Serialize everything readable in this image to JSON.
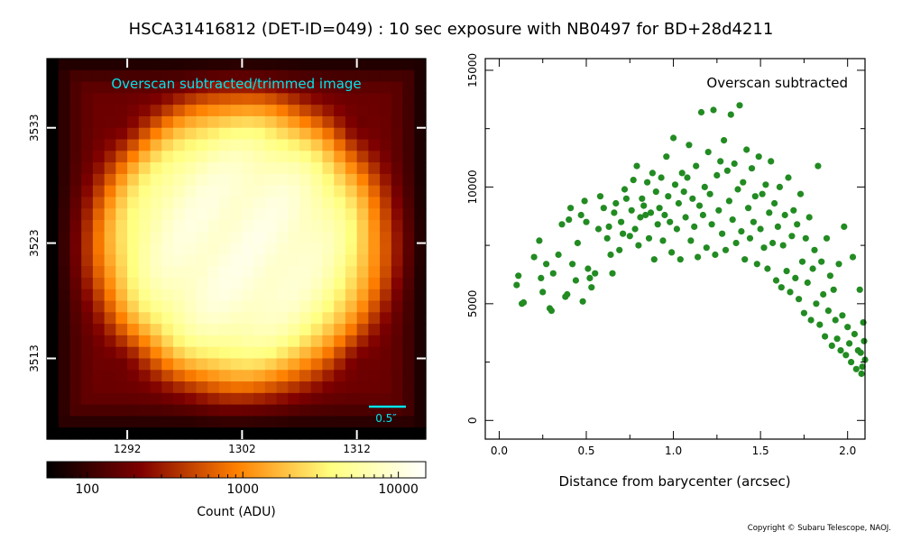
{
  "title": "HSCA31416812 (DET-ID=049) :  10 sec exposure with NB0497 for BD+28d4211",
  "copyright": "Copyright © Subaru Telescope, NAOJ.",
  "colors": {
    "scatter": "#228b22",
    "annotation": "#00e5ee",
    "frame": "#000000"
  },
  "chart_data": [
    {
      "type": "heatmap",
      "title": "Overscan subtracted/trimmed image",
      "colormap": "afmhot",
      "xlabel": "",
      "ylabel": "",
      "xlim": [
        1285,
        1318
      ],
      "ylim": [
        3506,
        3539
      ],
      "x_ticks": [
        1292,
        1302,
        1312
      ],
      "y_ticks": [
        3513,
        3523,
        3533
      ],
      "scale_bar_label": "0.5″",
      "grid_size": 33,
      "peak_adu": 12000,
      "background_adu": 55
    },
    {
      "type": "colorbar",
      "scale": "log",
      "range": [
        55,
        15000
      ],
      "ticks": [
        100,
        1000,
        10000
      ],
      "label": "Count (ADU)"
    },
    {
      "type": "scatter",
      "annotation": "Overscan subtracted",
      "xlabel": "Distance from barycenter (arcsec)",
      "ylabel": "",
      "xlim": [
        -0.08,
        2.1
      ],
      "ylim": [
        -800,
        15500
      ],
      "x_ticks": [
        0.0,
        0.5,
        1.0,
        1.5,
        2.0
      ],
      "y_ticks": [
        0,
        5000,
        10000,
        15000
      ],
      "series": [
        {
          "color": "#228b22",
          "points": [
            [
              0.1,
              5800
            ],
            [
              0.11,
              6200
            ],
            [
              0.13,
              5000
            ],
            [
              0.14,
              5050
            ],
            [
              0.2,
              7000
            ],
            [
              0.23,
              7700
            ],
            [
              0.24,
              6100
            ],
            [
              0.25,
              5500
            ],
            [
              0.27,
              6700
            ],
            [
              0.29,
              4800
            ],
            [
              0.3,
              4700
            ],
            [
              0.31,
              6300
            ],
            [
              0.34,
              7100
            ],
            [
              0.36,
              8400
            ],
            [
              0.38,
              5300
            ],
            [
              0.39,
              5400
            ],
            [
              0.4,
              8600
            ],
            [
              0.41,
              9100
            ],
            [
              0.42,
              6700
            ],
            [
              0.44,
              6000
            ],
            [
              0.45,
              7600
            ],
            [
              0.47,
              8800
            ],
            [
              0.48,
              5100
            ],
            [
              0.49,
              9400
            ],
            [
              0.5,
              8500
            ],
            [
              0.51,
              6500
            ],
            [
              0.52,
              6100
            ],
            [
              0.53,
              5700
            ],
            [
              0.55,
              6300
            ],
            [
              0.57,
              8200
            ],
            [
              0.58,
              9600
            ],
            [
              0.6,
              9100
            ],
            [
              0.62,
              7800
            ],
            [
              0.63,
              8300
            ],
            [
              0.64,
              7100
            ],
            [
              0.65,
              6300
            ],
            [
              0.66,
              8900
            ],
            [
              0.67,
              9300
            ],
            [
              0.69,
              7300
            ],
            [
              0.7,
              8500
            ],
            [
              0.71,
              8000
            ],
            [
              0.72,
              9900
            ],
            [
              0.73,
              9500
            ],
            [
              0.75,
              7900
            ],
            [
              0.76,
              9000
            ],
            [
              0.77,
              10300
            ],
            [
              0.78,
              8200
            ],
            [
              0.79,
              10900
            ],
            [
              0.8,
              7500
            ],
            [
              0.81,
              8700
            ],
            [
              0.82,
              9500
            ],
            [
              0.83,
              9200
            ],
            [
              0.84,
              8800
            ],
            [
              0.85,
              10200
            ],
            [
              0.86,
              7800
            ],
            [
              0.87,
              8900
            ],
            [
              0.88,
              10600
            ],
            [
              0.89,
              6900
            ],
            [
              0.9,
              9800
            ],
            [
              0.91,
              8400
            ],
            [
              0.92,
              9100
            ],
            [
              0.93,
              10400
            ],
            [
              0.94,
              7700
            ],
            [
              0.95,
              8800
            ],
            [
              0.96,
              11300
            ],
            [
              0.97,
              9600
            ],
            [
              0.98,
              8500
            ],
            [
              0.99,
              7200
            ],
            [
              1.0,
              12100
            ],
            [
              1.01,
              10100
            ],
            [
              1.02,
              8200
            ],
            [
              1.03,
              9300
            ],
            [
              1.04,
              6900
            ],
            [
              1.05,
              10600
            ],
            [
              1.06,
              9800
            ],
            [
              1.07,
              8700
            ],
            [
              1.08,
              10400
            ],
            [
              1.09,
              11800
            ],
            [
              1.1,
              7700
            ],
            [
              1.11,
              9500
            ],
            [
              1.12,
              8300
            ],
            [
              1.13,
              10900
            ],
            [
              1.14,
              7000
            ],
            [
              1.15,
              9200
            ],
            [
              1.16,
              13200
            ],
            [
              1.17,
              8800
            ],
            [
              1.18,
              10000
            ],
            [
              1.19,
              7400
            ],
            [
              1.2,
              11500
            ],
            [
              1.21,
              9700
            ],
            [
              1.22,
              8400
            ],
            [
              1.23,
              13300
            ],
            [
              1.24,
              7100
            ],
            [
              1.25,
              10500
            ],
            [
              1.26,
              9000
            ],
            [
              1.27,
              11100
            ],
            [
              1.28,
              8000
            ],
            [
              1.29,
              12000
            ],
            [
              1.3,
              7300
            ],
            [
              1.31,
              10700
            ],
            [
              1.32,
              9400
            ],
            [
              1.33,
              13100
            ],
            [
              1.34,
              8600
            ],
            [
              1.35,
              11000
            ],
            [
              1.36,
              7600
            ],
            [
              1.37,
              9900
            ],
            [
              1.38,
              13500
            ],
            [
              1.39,
              8100
            ],
            [
              1.4,
              10200
            ],
            [
              1.41,
              6900
            ],
            [
              1.42,
              11600
            ],
            [
              1.43,
              9100
            ],
            [
              1.44,
              7800
            ],
            [
              1.45,
              10800
            ],
            [
              1.46,
              8500
            ],
            [
              1.47,
              9600
            ],
            [
              1.48,
              6700
            ],
            [
              1.49,
              11300
            ],
            [
              1.5,
              8200
            ],
            [
              1.51,
              9700
            ],
            [
              1.52,
              7400
            ],
            [
              1.53,
              10100
            ],
            [
              1.54,
              6500
            ],
            [
              1.55,
              8900
            ],
            [
              1.56,
              11100
            ],
            [
              1.57,
              7600
            ],
            [
              1.58,
              9300
            ],
            [
              1.59,
              6000
            ],
            [
              1.6,
              8300
            ],
            [
              1.61,
              10000
            ],
            [
              1.62,
              5700
            ],
            [
              1.63,
              7500
            ],
            [
              1.64,
              8800
            ],
            [
              1.65,
              6400
            ],
            [
              1.66,
              10400
            ],
            [
              1.67,
              5500
            ],
            [
              1.68,
              7900
            ],
            [
              1.69,
              9000
            ],
            [
              1.7,
              6100
            ],
            [
              1.71,
              8400
            ],
            [
              1.72,
              5200
            ],
            [
              1.73,
              9700
            ],
            [
              1.74,
              6800
            ],
            [
              1.75,
              4600
            ],
            [
              1.76,
              7800
            ],
            [
              1.77,
              5900
            ],
            [
              1.78,
              8700
            ],
            [
              1.79,
              4300
            ],
            [
              1.8,
              6500
            ],
            [
              1.81,
              7300
            ],
            [
              1.82,
              5000
            ],
            [
              1.83,
              10900
            ],
            [
              1.84,
              4100
            ],
            [
              1.85,
              6800
            ],
            [
              1.86,
              5400
            ],
            [
              1.87,
              3600
            ],
            [
              1.88,
              7800
            ],
            [
              1.89,
              4700
            ],
            [
              1.9,
              6200
            ],
            [
              1.91,
              3200
            ],
            [
              1.92,
              5600
            ],
            [
              1.93,
              4300
            ],
            [
              1.94,
              3500
            ],
            [
              1.95,
              6700
            ],
            [
              1.96,
              3000
            ],
            [
              1.97,
              4500
            ],
            [
              1.98,
              8300
            ],
            [
              1.99,
              2800
            ],
            [
              2.0,
              4000
            ],
            [
              2.01,
              3300
            ],
            [
              2.02,
              2500
            ],
            [
              2.03,
              7000
            ],
            [
              2.04,
              3700
            ],
            [
              2.05,
              2200
            ],
            [
              2.06,
              3000
            ],
            [
              2.07,
              5600
            ],
            [
              2.08,
              2000
            ],
            [
              2.09,
              4200
            ],
            [
              2.1,
              2600
            ],
            [
              2.095,
              3400
            ],
            [
              2.085,
              2300
            ],
            [
              2.075,
              2900
            ]
          ]
        }
      ]
    }
  ]
}
